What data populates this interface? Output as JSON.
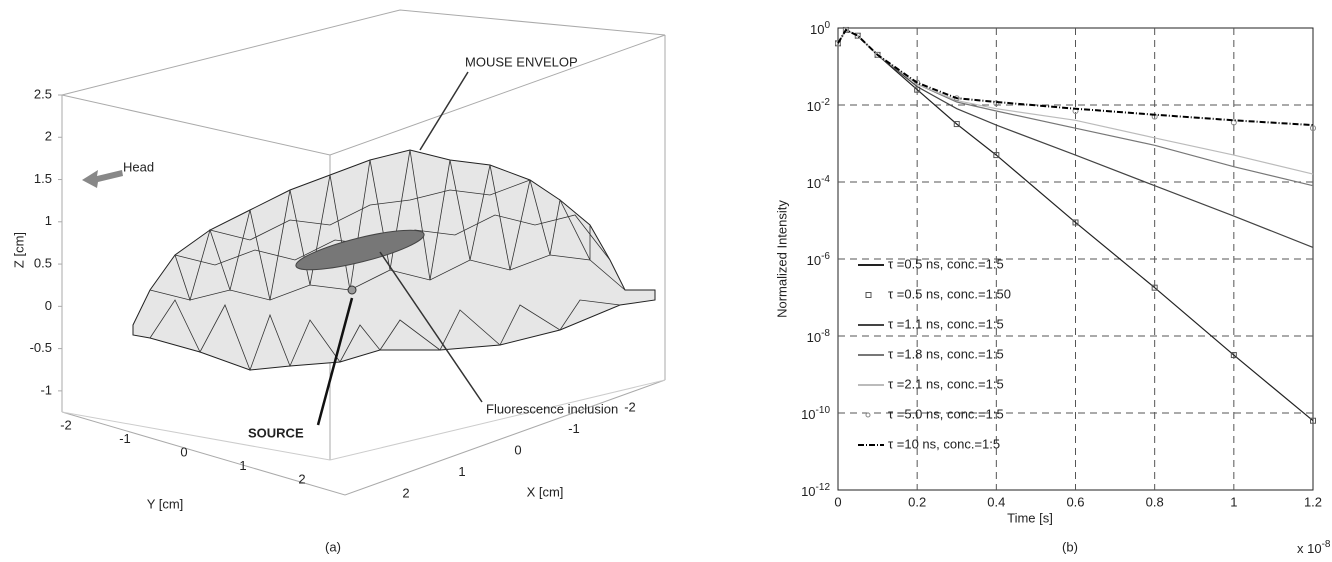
{
  "chart_data": [
    {
      "type": "surface3d",
      "zlabel": "Z [cm]",
      "ylabel": "Y [cm]",
      "xlabel": "X [cm]",
      "zlim": [
        -1.25,
        2.5
      ],
      "zticks": [
        -1,
        -0.5,
        0,
        0.5,
        1,
        1.5,
        2,
        2.5
      ],
      "ylim": [
        -2,
        2
      ],
      "yticks": [
        -2,
        -1,
        0,
        1,
        2
      ],
      "xlim": [
        -2,
        2
      ],
      "xticks": [
        -2,
        -1,
        0,
        1,
        2
      ],
      "annotations": [
        "MOUSE ENVELOP",
        "Head",
        "Fluorescence inclusion",
        "SOURCE"
      ],
      "caption": "(a)"
    },
    {
      "type": "line",
      "log_y": true,
      "grid": true,
      "xlabel": "Time [s]",
      "ylabel": "Normalized Intensity",
      "x_multiplier": "x 10^-8",
      "caption": "(b)",
      "xlim": [
        0,
        1.2
      ],
      "xticks": [
        0,
        0.2,
        0.4,
        0.6,
        0.8,
        1,
        1.2
      ],
      "ylim": [
        1e-12,
        1
      ],
      "yticks": [
        {
          "value": 1e-12,
          "label": "10^-12"
        },
        {
          "value": 1e-10,
          "label": "10^-10"
        },
        {
          "value": 1e-08,
          "label": "10^-8"
        },
        {
          "value": 1e-06,
          "label": "10^-6"
        },
        {
          "value": 0.0001,
          "label": "10^-4"
        },
        {
          "value": 0.01,
          "label": "10^-2"
        },
        {
          "value": 1,
          "label": "10^0"
        }
      ],
      "x": [
        0,
        0.02,
        0.05,
        0.1,
        0.2,
        0.3,
        0.4,
        0.6,
        0.8,
        1.0,
        1.2
      ],
      "series": [
        {
          "name": "τ =0.5 ns, conc.=1:5",
          "color": "#222222",
          "style": "line",
          "values": [
            0.4,
            0.89,
            0.63,
            0.2,
            0.025,
            0.0032,
            0.0005,
            8.9e-06,
            1.8e-07,
            3.2e-09,
            6.3e-11
          ]
        },
        {
          "name": "τ =0.5 ns, conc.=1:50",
          "color": "#555555",
          "style": "squares",
          "values": [
            0.4,
            0.89,
            0.63,
            0.2,
            0.025,
            0.0032,
            0.0005,
            8.9e-06,
            1.8e-07,
            3.2e-09,
            6.3e-11
          ]
        },
        {
          "name": "τ =1.1 ns, conc.=1:5",
          "color": "#444444",
          "style": "line",
          "values": [
            0.4,
            0.89,
            0.63,
            0.2,
            0.03,
            0.008,
            0.003,
            0.0005,
            8e-05,
            1.3e-05,
            2e-06
          ]
        },
        {
          "name": "τ =1.8 ns, conc.=1:5",
          "color": "#777777",
          "style": "line",
          "values": [
            0.4,
            0.89,
            0.63,
            0.2,
            0.035,
            0.012,
            0.007,
            0.0025,
            0.0009,
            0.00025,
            8e-05
          ]
        },
        {
          "name": "τ =2.1 ns, conc.=1:5",
          "color": "#bbbbbb",
          "style": "line",
          "values": [
            0.4,
            0.89,
            0.63,
            0.2,
            0.035,
            0.013,
            0.008,
            0.004,
            0.0014,
            0.0005,
            0.00016
          ]
        },
        {
          "name": "τ =5.0 ns, conc.=1:5",
          "color": "#888888",
          "style": "circles",
          "values": [
            0.4,
            0.89,
            0.63,
            0.2,
            0.038,
            0.015,
            0.011,
            0.007,
            0.005,
            0.0035,
            0.0025
          ]
        },
        {
          "name": "τ =10 ns, conc.=1:5",
          "color": "#000000",
          "style": "dashdot",
          "values": [
            0.4,
            0.89,
            0.63,
            0.2,
            0.038,
            0.015,
            0.012,
            0.008,
            0.0056,
            0.004,
            0.003
          ]
        }
      ]
    }
  ]
}
